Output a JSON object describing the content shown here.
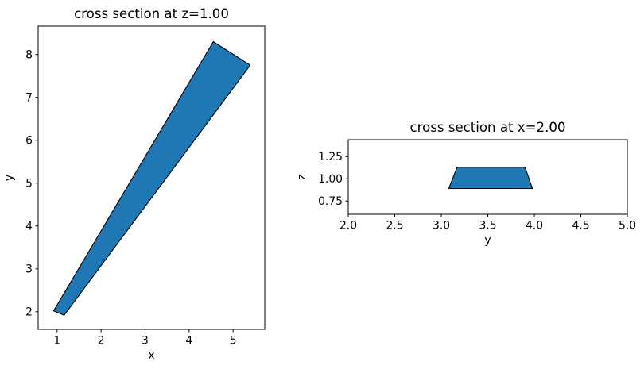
{
  "page": {
    "background": "#ffffff",
    "text_color": "#000000"
  },
  "chart_data": [
    {
      "type": "area",
      "shape": "filled-polygon",
      "title": "cross section at z=1.00",
      "xlabel": "x",
      "ylabel": "y",
      "xlim": [
        0.57,
        5.72
      ],
      "ylim": [
        1.59,
        8.66
      ],
      "xticks": [
        1,
        2,
        3,
        4,
        5
      ],
      "xtick_labels": [
        "1",
        "2",
        "3",
        "4",
        "5"
      ],
      "yticks": [
        2,
        3,
        4,
        5,
        6,
        7,
        8
      ],
      "ytick_labels": [
        "2",
        "3",
        "4",
        "5",
        "6",
        "7",
        "8"
      ],
      "polygon": [
        [
          0.92,
          2.02
        ],
        [
          4.55,
          8.3
        ],
        [
          5.39,
          7.75
        ],
        [
          1.16,
          1.92
        ]
      ],
      "fill_color": "#1f77b4",
      "edge_color": "#000000",
      "grid": false,
      "legend": null
    },
    {
      "type": "area",
      "shape": "filled-polygon",
      "title": "cross section at x=2.00",
      "xlabel": "y",
      "ylabel": "z",
      "xlim": [
        2.0,
        5.0
      ],
      "ylim": [
        0.6,
        1.44
      ],
      "xticks": [
        2.0,
        2.5,
        3.0,
        3.5,
        4.0,
        4.5,
        5.0
      ],
      "xtick_labels": [
        "2.0",
        "2.5",
        "3.0",
        "3.5",
        "4.0",
        "4.5",
        "5.0"
      ],
      "yticks": [
        0.75,
        1.0,
        1.25
      ],
      "ytick_labels": [
        "0.75",
        "1.00",
        "1.25"
      ],
      "polygon": [
        [
          3.08,
          0.89
        ],
        [
          3.98,
          0.89
        ],
        [
          3.9,
          1.13
        ],
        [
          3.17,
          1.13
        ]
      ],
      "fill_color": "#1f77b4",
      "edge_color": "#000000",
      "grid": false,
      "legend": null
    }
  ]
}
